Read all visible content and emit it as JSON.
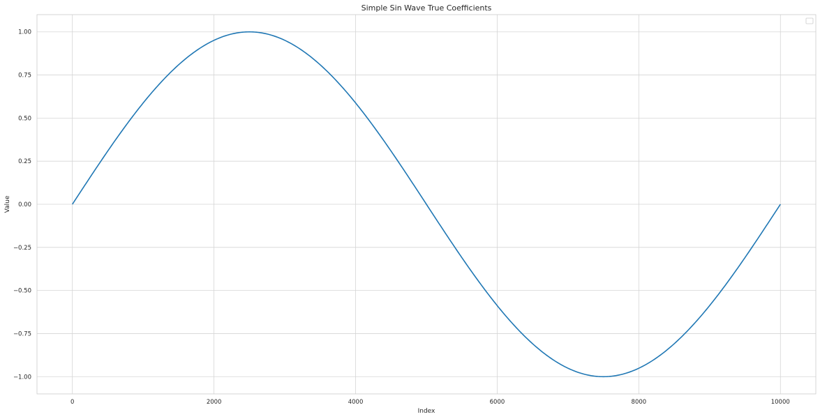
{
  "chart_data": {
    "type": "line",
    "title": "Simple Sin Wave True Coefficients",
    "xlabel": "Index",
    "ylabel": "Value",
    "xlim": [
      -500,
      10500
    ],
    "ylim": [
      -1.1,
      1.1
    ],
    "xticks": [
      0,
      2000,
      4000,
      6000,
      8000,
      10000
    ],
    "yticks": [
      1.0,
      0.75,
      0.5,
      0.25,
      0.0,
      -0.25,
      -0.5,
      -0.75,
      -1.0
    ],
    "ytick_labels": [
      "1.00",
      "0.75",
      "0.50",
      "0.25",
      "0.00",
      "−0.25",
      "−0.50",
      "−0.75",
      "−1.00"
    ],
    "grid": true,
    "legend": {
      "placement": "top-right",
      "entries": []
    },
    "series": [
      {
        "color": "#1f77b4",
        "x": [
          0,
          500,
          1000,
          1500,
          2000,
          2500,
          3000,
          3500,
          4000,
          4500,
          5000,
          5500,
          6000,
          6500,
          7000,
          7500,
          8000,
          8500,
          9000,
          9500,
          10000
        ],
        "y": [
          0.0,
          0.309,
          0.588,
          0.809,
          0.951,
          1.0,
          0.951,
          0.809,
          0.588,
          0.309,
          0.0,
          -0.309,
          -0.588,
          -0.809,
          -0.951,
          -1.0,
          -0.951,
          -0.809,
          -0.588,
          -0.309,
          0.0
        ]
      }
    ]
  }
}
